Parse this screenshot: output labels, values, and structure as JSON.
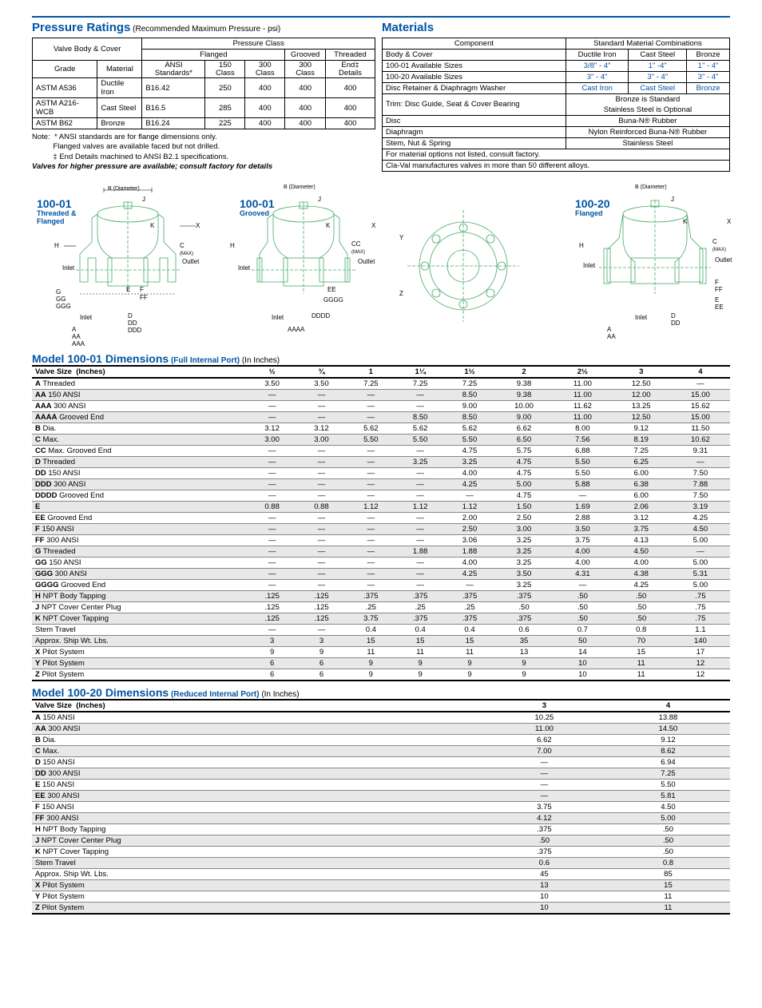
{
  "pressure": {
    "title": "Pressure Ratings",
    "sub": "(Recommended Maximum Pressure - psi)",
    "h_body": "Valve Body & Cover",
    "h_pclass": "Pressure Class",
    "h_flanged": "Flanged",
    "h_grooved": "Grooved",
    "h_threaded": "Threaded",
    "h_grade": "Grade",
    "h_material": "Material",
    "h_ansi": "ANSI Standards*",
    "h_150": "150 Class",
    "h_300": "300 Class",
    "h_300g": "300 Class",
    "h_end": "End‡ Details",
    "rows": [
      {
        "grade": "ASTM A536",
        "mat": "Ductile Iron",
        "ansi": "B16.42",
        "c150": "250",
        "c300": "400",
        "c300g": "400",
        "end": "400"
      },
      {
        "grade": "ASTM A216-WCB",
        "mat": "Cast Steel",
        "ansi": "B16.5",
        "c150": "285",
        "c300": "400",
        "c300g": "400",
        "end": "400"
      },
      {
        "grade": "ASTM B62",
        "mat": "Bronze",
        "ansi": "B16.24",
        "c150": "225",
        "c300": "400",
        "c300g": "400",
        "end": "400"
      }
    ],
    "note_lbl": "Note:",
    "note1": "* ANSI standards are for flange dimensions only.",
    "note2": "Flanged valves are available faced but not drilled.",
    "note3": "‡ End Details machined to ANSI B2.1 specifications.",
    "note4": "Valves for higher pressure are available; consult factory for details"
  },
  "materials": {
    "title": "Materials",
    "h_comp": "Component",
    "h_std": "Standard Material Combinations",
    "r1": {
      "c": "Body & Cover",
      "v": [
        "Ductile Iron",
        "Cast Steel",
        "Bronze"
      ]
    },
    "r2": {
      "c": "100-01 Available Sizes",
      "v": [
        "3/8\" - 4\"",
        "1\" -4\"",
        "1\" - 4\""
      ]
    },
    "r3": {
      "c": "100-20 Available Sizes",
      "v": [
        "3\" - 4\"",
        "3\" - 4\"",
        "3\" - 4\""
      ]
    },
    "r4": {
      "c": "Disc Retainer & Diaphragm Washer",
      "v": [
        "Cast Iron",
        "Cast Steel",
        "Bronze"
      ]
    },
    "r5": {
      "c": "Trim: Disc Guide, Seat & Cover Bearing",
      "v1": "Bronze is Standard",
      "v2": "Stainless Steel is Optional"
    },
    "r6": {
      "c": "Disc",
      "v": "Buna-N® Rubber"
    },
    "r7": {
      "c": "Diaphragm",
      "v": "Nylon Reinforced Buna-N® Rubber"
    },
    "r8": {
      "c": "Stem, Nut & Spring",
      "v": "Stainless Steel"
    },
    "r9": "For material options not listed, consult factory.",
    "r10": "Cla-Val manufactures valves in more than 50 different alloys."
  },
  "diag": {
    "d1_title": "100-01",
    "d1_sub": "Threaded &\nFlanged",
    "d2_title": "100-01",
    "d2_sub": "Grooved",
    "d3_title": "100-20",
    "d3_sub": "Flanged",
    "bdia": "B (Diameter)",
    "inlet": "Inlet",
    "outlet": "Outlet",
    "cmax": "C",
    "cmax2": "(MAX)",
    "labels": [
      "H",
      "J",
      "K",
      "X",
      "E",
      "F",
      "FF",
      "G",
      "GG",
      "GGG",
      "A",
      "AA",
      "AAA",
      "D",
      "DD",
      "DDD",
      "EE",
      "CC",
      "AAAA",
      "DDDD",
      "GGGG",
      "Y",
      "Z"
    ]
  },
  "dim01": {
    "title": "Model 100-01 Dimensions",
    "sub": "(Full Internal Port)",
    "unit": "(In Inches)",
    "sizes": [
      "½",
      "¾",
      "1",
      "1¼",
      "1½",
      "2",
      "2½",
      "3",
      "4"
    ],
    "rows": [
      {
        "n": "A",
        "d": "Threaded",
        "v": [
          "3.50",
          "3.50",
          "7.25",
          "7.25",
          "7.25",
          "9.38",
          "11.00",
          "12.50",
          "—"
        ]
      },
      {
        "n": "AA",
        "d": "150 ANSI",
        "v": [
          "—",
          "—",
          "—",
          "—",
          "8.50",
          "9.38",
          "11.00",
          "12.00",
          "15.00"
        ],
        "alt": 1
      },
      {
        "n": "AAA",
        "d": "300 ANSI",
        "v": [
          "—",
          "—",
          "—",
          "—",
          "9.00",
          "10.00",
          "11.62",
          "13.25",
          "15.62"
        ]
      },
      {
        "n": "AAAA",
        "d": "Grooved End",
        "v": [
          "—",
          "—",
          "—",
          "8.50",
          "8.50",
          "9.00",
          "11.00",
          "12.50",
          "15.00"
        ],
        "alt": 1
      },
      {
        "n": "B",
        "d": "Dia.",
        "v": [
          "3.12",
          "3.12",
          "5.62",
          "5.62",
          "5.62",
          "6.62",
          "8.00",
          "9.12",
          "11.50"
        ]
      },
      {
        "n": "C",
        "d": "Max.",
        "v": [
          "3.00",
          "3.00",
          "5.50",
          "5.50",
          "5.50",
          "6.50",
          "7.56",
          "8.19",
          "10.62"
        ],
        "alt": 1
      },
      {
        "n": "CC",
        "d": "Max. Grooved End",
        "v": [
          "—",
          "—",
          "—",
          "—",
          "4.75",
          "5.75",
          "6.88",
          "7.25",
          "9.31"
        ]
      },
      {
        "n": "D",
        "d": "Threaded",
        "v": [
          "—",
          "—",
          "—",
          "3.25",
          "3.25",
          "4.75",
          "5.50",
          "6.25",
          "—"
        ],
        "alt": 1
      },
      {
        "n": "DD",
        "d": "150 ANSI",
        "v": [
          "—",
          "—",
          "—",
          "—",
          "4.00",
          "4.75",
          "5.50",
          "6.00",
          "7.50"
        ]
      },
      {
        "n": "DDD",
        "d": "300 ANSI",
        "v": [
          "—",
          "—",
          "—",
          "—",
          "4.25",
          "5.00",
          "5.88",
          "6.38",
          "7.88"
        ],
        "alt": 1
      },
      {
        "n": "DDDD",
        "d": "Grooved End",
        "v": [
          "—",
          "—",
          "—",
          "—",
          "—",
          "4.75",
          "—",
          "6.00",
          "7.50"
        ]
      },
      {
        "n": "E",
        "d": "",
        "v": [
          "0.88",
          "0.88",
          "1.12",
          "1.12",
          "1.12",
          "1.50",
          "1.69",
          "2.06",
          "3.19"
        ],
        "alt": 1
      },
      {
        "n": "EE",
        "d": "Grooved End",
        "v": [
          "—",
          "—",
          "—",
          "—",
          "2.00",
          "2.50",
          "2.88",
          "3.12",
          "4.25"
        ]
      },
      {
        "n": "F",
        "d": "150 ANSI",
        "v": [
          "—",
          "—",
          "—",
          "—",
          "2.50",
          "3.00",
          "3.50",
          "3.75",
          "4.50"
        ],
        "alt": 1
      },
      {
        "n": "FF",
        "d": "300 ANSI",
        "v": [
          "—",
          "—",
          "—",
          "—",
          "3.06",
          "3.25",
          "3.75",
          "4.13",
          "5.00"
        ]
      },
      {
        "n": "G",
        "d": "Threaded",
        "v": [
          "—",
          "—",
          "—",
          "1.88",
          "1.88",
          "3.25",
          "4.00",
          "4.50",
          "—"
        ],
        "alt": 1
      },
      {
        "n": "GG",
        "d": "150 ANSI",
        "v": [
          "—",
          "—",
          "—",
          "—",
          "4.00",
          "3.25",
          "4.00",
          "4.00",
          "5.00"
        ]
      },
      {
        "n": "GGG",
        "d": "300 ANSI",
        "v": [
          "—",
          "—",
          "—",
          "—",
          "4.25",
          "3.50",
          "4.31",
          "4.38",
          "5.31"
        ],
        "alt": 1
      },
      {
        "n": "GGGG",
        "d": "Grooved End",
        "v": [
          "—",
          "—",
          "—",
          "—",
          "—",
          "3.25",
          "—",
          "4.25",
          "5.00"
        ]
      },
      {
        "n": "H",
        "d": "NPT Body Tapping",
        "v": [
          ".125",
          ".125",
          ".375",
          ".375",
          ".375",
          ".375",
          ".50",
          ".50",
          ".75"
        ],
        "alt": 1
      },
      {
        "n": "J",
        "d": "NPT Cover Center Plug",
        "v": [
          ".125",
          ".125",
          ".25",
          ".25",
          ".25",
          ".50",
          ".50",
          ".50",
          ".75"
        ]
      },
      {
        "n": "K",
        "d": "NPT Cover Tapping",
        "v": [
          ".125",
          ".125",
          "3.75",
          ".375",
          ".375",
          ".375",
          ".50",
          ".50",
          ".75"
        ],
        "alt": 1
      },
      {
        "n": "",
        "d": "Stem Travel",
        "v": [
          "—",
          "—",
          "0.4",
          "0.4",
          "0.4",
          "0.6",
          "0.7",
          "0.8",
          "1.1"
        ]
      },
      {
        "n": "",
        "d": "Approx. Ship Wt. Lbs.",
        "v": [
          "3",
          "3",
          "15",
          "15",
          "15",
          "35",
          "50",
          "70",
          "140"
        ],
        "alt": 1
      },
      {
        "n": "X",
        "d": "Pilot System",
        "v": [
          "9",
          "9",
          "11",
          "11",
          "11",
          "13",
          "14",
          "15",
          "17"
        ]
      },
      {
        "n": "Y",
        "d": "Pilot System",
        "v": [
          "6",
          "6",
          "9",
          "9",
          "9",
          "9",
          "10",
          "11",
          "12"
        ],
        "alt": 1
      },
      {
        "n": "Z",
        "d": "Pilot System",
        "v": [
          "6",
          "6",
          "9",
          "9",
          "9",
          "9",
          "10",
          "11",
          "12"
        ]
      }
    ]
  },
  "dim20": {
    "title": "Model 100-20 Dimensions",
    "sub": "(Reduced Internal Port)",
    "unit": "(In Inches)",
    "sizes": [
      "3",
      "4"
    ],
    "rows": [
      {
        "n": "A",
        "d": "150 ANSI",
        "v": [
          "10.25",
          "13.88"
        ]
      },
      {
        "n": "AA",
        "d": "300 ANSI",
        "v": [
          "11.00",
          "14.50"
        ],
        "alt": 1
      },
      {
        "n": "B",
        "d": "Dia.",
        "v": [
          "6.62",
          "9.12"
        ]
      },
      {
        "n": "C",
        "d": "Max.",
        "v": [
          "7.00",
          "8.62"
        ],
        "alt": 1
      },
      {
        "n": "D",
        "d": "150 ANSI",
        "v": [
          "—",
          "6.94"
        ]
      },
      {
        "n": "DD",
        "d": "300 ANSI",
        "v": [
          "—",
          "7.25"
        ],
        "alt": 1
      },
      {
        "n": "E",
        "d": "150 ANSI",
        "v": [
          "—",
          "5.50"
        ]
      },
      {
        "n": "EE",
        "d": "300 ANSI",
        "v": [
          "—",
          "5.81"
        ],
        "alt": 1
      },
      {
        "n": "F",
        "d": "150 ANSI",
        "v": [
          "3.75",
          "4.50"
        ]
      },
      {
        "n": "FF",
        "d": "300 ANSI",
        "v": [
          "4.12",
          "5.00"
        ],
        "alt": 1
      },
      {
        "n": "H",
        "d": "NPT Body Tapping",
        "v": [
          ".375",
          ".50"
        ]
      },
      {
        "n": "J",
        "d": "NPT Cover Center Plug",
        "v": [
          ".50",
          ".50"
        ],
        "alt": 1
      },
      {
        "n": "K",
        "d": "NPT Cover Tapping",
        "v": [
          ".375",
          ".50"
        ]
      },
      {
        "n": "",
        "d": "Stem Travel",
        "v": [
          "0.6",
          "0.8"
        ],
        "alt": 1
      },
      {
        "n": "",
        "d": "Approx. Ship Wt. Lbs.",
        "v": [
          "45",
          "85"
        ]
      },
      {
        "n": "X",
        "d": "Pilot System",
        "v": [
          "13",
          "15"
        ],
        "alt": 1
      },
      {
        "n": "Y",
        "d": "Pilot System",
        "v": [
          "10",
          "11"
        ]
      },
      {
        "n": "Z",
        "d": "Pilot System",
        "v": [
          "10",
          "11"
        ],
        "alt": 1
      }
    ]
  }
}
